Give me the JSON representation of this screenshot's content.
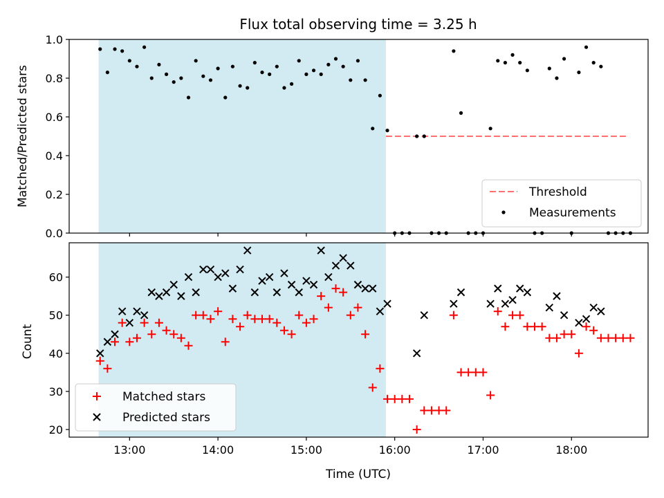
{
  "figure": {
    "title": "Flux total observing time = 3.25 h",
    "xlabel": "Time (UTC)",
    "xtick_labels": [
      "13:00",
      "14:00",
      "15:00",
      "16:00",
      "17:00",
      "18:00"
    ],
    "colors": {
      "shade": "#add8e6",
      "threshold": "#ff6f6f",
      "measurement": "#000000",
      "matched": "#ff0000",
      "predicted": "#000000"
    }
  },
  "chart_data": [
    {
      "type": "scatter",
      "ylabel": "Matched/Predicted stars",
      "xlim": [
        "12:19",
        "18:52"
      ],
      "ylim": [
        0,
        1.0
      ],
      "ytick_labels": [
        "0.0",
        "0.2",
        "0.4",
        "0.6",
        "0.8",
        "1.0"
      ],
      "shaded_span": [
        "12:39",
        "15:54"
      ],
      "legend_position": "lower right",
      "threshold": {
        "label": "Threshold",
        "value": 0.5,
        "x_range": [
          "15:54",
          "18:37"
        ]
      },
      "series": [
        {
          "name": "Measurements",
          "points": [
            [
              "12:40",
              0.95
            ],
            [
              "12:45",
              0.83
            ],
            [
              "12:50",
              0.95
            ],
            [
              "12:55",
              0.94
            ],
            [
              "13:00",
              0.89
            ],
            [
              "13:05",
              0.86
            ],
            [
              "13:10",
              0.96
            ],
            [
              "13:15",
              0.8
            ],
            [
              "13:20",
              0.87
            ],
            [
              "13:25",
              0.82
            ],
            [
              "13:30",
              0.78
            ],
            [
              "13:35",
              0.8
            ],
            [
              "13:40",
              0.7
            ],
            [
              "13:45",
              0.89
            ],
            [
              "13:50",
              0.81
            ],
            [
              "13:55",
              0.79
            ],
            [
              "14:00",
              0.85
            ],
            [
              "14:05",
              0.7
            ],
            [
              "14:10",
              0.86
            ],
            [
              "14:15",
              0.76
            ],
            [
              "14:20",
              0.75
            ],
            [
              "14:25",
              0.88
            ],
            [
              "14:30",
              0.83
            ],
            [
              "14:35",
              0.82
            ],
            [
              "14:40",
              0.86
            ],
            [
              "14:45",
              0.75
            ],
            [
              "14:50",
              0.77
            ],
            [
              "14:55",
              0.89
            ],
            [
              "15:00",
              0.82
            ],
            [
              "15:05",
              0.84
            ],
            [
              "15:10",
              0.82
            ],
            [
              "15:15",
              0.87
            ],
            [
              "15:20",
              0.9
            ],
            [
              "15:25",
              0.86
            ],
            [
              "15:30",
              0.79
            ],
            [
              "15:35",
              0.89
            ],
            [
              "15:40",
              0.79
            ],
            [
              "15:45",
              0.54
            ],
            [
              "15:50",
              0.71
            ],
            [
              "15:55",
              0.53
            ],
            [
              "16:00",
              0.0
            ],
            [
              "16:05",
              0.0
            ],
            [
              "16:10",
              0.0
            ],
            [
              "16:15",
              0.5
            ],
            [
              "16:20",
              0.5
            ],
            [
              "16:25",
              0.0
            ],
            [
              "16:30",
              0.0
            ],
            [
              "16:35",
              0.0
            ],
            [
              "16:40",
              0.94
            ],
            [
              "16:45",
              0.62
            ],
            [
              "16:50",
              0.0
            ],
            [
              "16:55",
              0.0
            ],
            [
              "17:00",
              0.0
            ],
            [
              "17:05",
              0.54
            ],
            [
              "17:10",
              0.89
            ],
            [
              "17:15",
              0.88
            ],
            [
              "17:20",
              0.92
            ],
            [
              "17:25",
              0.88
            ],
            [
              "17:30",
              0.84
            ],
            [
              "17:35",
              0.0
            ],
            [
              "17:40",
              0.0
            ],
            [
              "17:45",
              0.85
            ],
            [
              "17:50",
              0.8
            ],
            [
              "17:55",
              0.9
            ],
            [
              "18:00",
              0.0
            ],
            [
              "18:05",
              0.83
            ],
            [
              "18:10",
              0.96
            ],
            [
              "18:15",
              0.88
            ],
            [
              "18:20",
              0.86
            ],
            [
              "18:25",
              0.0
            ],
            [
              "18:30",
              0.0
            ],
            [
              "18:35",
              0.0
            ],
            [
              "18:40",
              0.0
            ]
          ]
        }
      ]
    },
    {
      "type": "scatter",
      "ylabel": "Count",
      "xlim": [
        "12:19",
        "18:52"
      ],
      "ylim": [
        18,
        69
      ],
      "ytick_labels": [
        "20",
        "30",
        "40",
        "50",
        "60"
      ],
      "shaded_span": [
        "12:39",
        "15:54"
      ],
      "legend_position": "lower left",
      "series": [
        {
          "name": "Matched stars",
          "points": [
            [
              "12:40",
              38
            ],
            [
              "12:45",
              36
            ],
            [
              "12:50",
              43
            ],
            [
              "12:55",
              48
            ],
            [
              "13:00",
              43
            ],
            [
              "13:05",
              44
            ],
            [
              "13:10",
              48
            ],
            [
              "13:15",
              45
            ],
            [
              "13:20",
              48
            ],
            [
              "13:25",
              46
            ],
            [
              "13:30",
              45
            ],
            [
              "13:35",
              44
            ],
            [
              "13:40",
              42
            ],
            [
              "13:45",
              50
            ],
            [
              "13:50",
              50
            ],
            [
              "13:55",
              49
            ],
            [
              "14:00",
              51
            ],
            [
              "14:05",
              43
            ],
            [
              "14:10",
              49
            ],
            [
              "14:15",
              47
            ],
            [
              "14:20",
              50
            ],
            [
              "14:25",
              49
            ],
            [
              "14:30",
              49
            ],
            [
              "14:35",
              49
            ],
            [
              "14:40",
              48
            ],
            [
              "14:45",
              46
            ],
            [
              "14:50",
              45
            ],
            [
              "14:55",
              50
            ],
            [
              "15:00",
              48
            ],
            [
              "15:05",
              49
            ],
            [
              "15:10",
              55
            ],
            [
              "15:15",
              52
            ],
            [
              "15:20",
              57
            ],
            [
              "15:25",
              56
            ],
            [
              "15:30",
              50
            ],
            [
              "15:35",
              52
            ],
            [
              "15:40",
              45
            ],
            [
              "15:45",
              31
            ],
            [
              "15:50",
              36
            ],
            [
              "15:55",
              28
            ],
            [
              "16:00",
              28
            ],
            [
              "16:05",
              28
            ],
            [
              "16:10",
              28
            ],
            [
              "16:15",
              20
            ],
            [
              "16:20",
              25
            ],
            [
              "16:25",
              25
            ],
            [
              "16:30",
              25
            ],
            [
              "16:35",
              25
            ],
            [
              "16:40",
              50
            ],
            [
              "16:45",
              35
            ],
            [
              "16:50",
              35
            ],
            [
              "16:55",
              35
            ],
            [
              "17:00",
              35
            ],
            [
              "17:05",
              29
            ],
            [
              "17:10",
              51
            ],
            [
              "17:15",
              47
            ],
            [
              "17:20",
              50
            ],
            [
              "17:25",
              50
            ],
            [
              "17:30",
              47
            ],
            [
              "17:35",
              47
            ],
            [
              "17:40",
              47
            ],
            [
              "17:45",
              44
            ],
            [
              "17:50",
              44
            ],
            [
              "17:55",
              45
            ],
            [
              "18:00",
              45
            ],
            [
              "18:05",
              40
            ],
            [
              "18:10",
              47
            ],
            [
              "18:15",
              46
            ],
            [
              "18:20",
              44
            ],
            [
              "18:25",
              44
            ],
            [
              "18:30",
              44
            ],
            [
              "18:35",
              44
            ],
            [
              "18:40",
              44
            ]
          ]
        },
        {
          "name": "Predicted stars",
          "points": [
            [
              "12:40",
              40
            ],
            [
              "12:45",
              43
            ],
            [
              "12:50",
              45
            ],
            [
              "12:55",
              51
            ],
            [
              "13:00",
              48
            ],
            [
              "13:05",
              51
            ],
            [
              "13:10",
              50
            ],
            [
              "13:15",
              56
            ],
            [
              "13:20",
              55
            ],
            [
              "13:25",
              56
            ],
            [
              "13:30",
              58
            ],
            [
              "13:35",
              55
            ],
            [
              "13:40",
              60
            ],
            [
              "13:45",
              56
            ],
            [
              "13:50",
              62
            ],
            [
              "13:55",
              62
            ],
            [
              "14:00",
              60
            ],
            [
              "14:05",
              61
            ],
            [
              "14:10",
              57
            ],
            [
              "14:15",
              62
            ],
            [
              "14:20",
              67
            ],
            [
              "14:25",
              56
            ],
            [
              "14:30",
              59
            ],
            [
              "14:35",
              60
            ],
            [
              "14:40",
              56
            ],
            [
              "14:45",
              61
            ],
            [
              "14:50",
              58
            ],
            [
              "14:55",
              56
            ],
            [
              "15:00",
              59
            ],
            [
              "15:05",
              58
            ],
            [
              "15:10",
              67
            ],
            [
              "15:15",
              60
            ],
            [
              "15:20",
              63
            ],
            [
              "15:25",
              65
            ],
            [
              "15:30",
              63
            ],
            [
              "15:35",
              58
            ],
            [
              "15:40",
              57
            ],
            [
              "15:45",
              57
            ],
            [
              "15:50",
              51
            ],
            [
              "15:55",
              53
            ],
            [
              "16:15",
              40
            ],
            [
              "16:20",
              50
            ],
            [
              "16:40",
              53
            ],
            [
              "16:45",
              56
            ],
            [
              "17:05",
              53
            ],
            [
              "17:10",
              57
            ],
            [
              "17:15",
              53
            ],
            [
              "17:20",
              54
            ],
            [
              "17:25",
              57
            ],
            [
              "17:30",
              56
            ],
            [
              "17:45",
              52
            ],
            [
              "17:50",
              55
            ],
            [
              "17:55",
              50
            ],
            [
              "18:05",
              48
            ],
            [
              "18:10",
              49
            ],
            [
              "18:15",
              52
            ],
            [
              "18:20",
              51
            ]
          ]
        }
      ]
    }
  ]
}
